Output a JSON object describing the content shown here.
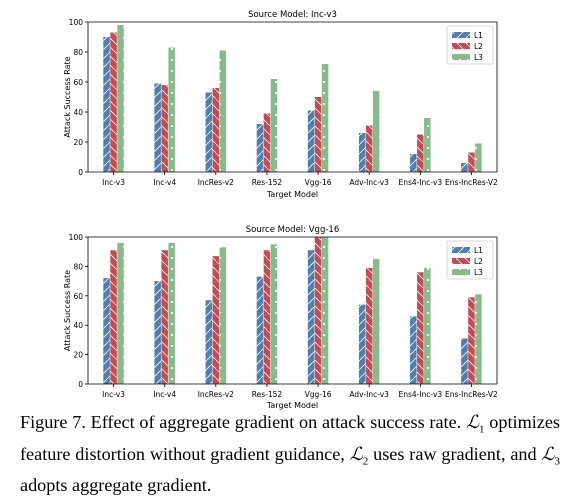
{
  "colors": {
    "L1": "#4e7fb4",
    "L2": "#c8494f",
    "L3": "#86bc8a"
  },
  "chart_data": [
    {
      "type": "bar",
      "title": "Source Model: Inc-v3",
      "xlabel": "Target Model",
      "ylabel": "Attack Success Rate",
      "ylim": [
        0,
        100
      ],
      "yticks": [
        "0",
        "20",
        "40",
        "60",
        "80",
        "100"
      ],
      "grid": false,
      "legend": "top-right",
      "categories": [
        "Inc-v3",
        "Inc-v4",
        "IncRes-v2",
        "Res-152",
        "Vgg-16",
        "Adv-Inc-v3",
        "Ens4-Inc-v3",
        "Ens-IncRes-V2"
      ],
      "series": [
        {
          "name": "L1",
          "values": [
            90,
            59,
            53,
            32,
            41,
            26,
            12,
            6
          ]
        },
        {
          "name": "L2",
          "values": [
            93,
            58,
            56,
            39,
            50,
            31,
            25,
            13
          ]
        },
        {
          "name": "L3",
          "values": [
            98,
            83,
            81,
            62,
            72,
            54,
            36,
            19
          ]
        }
      ]
    },
    {
      "type": "bar",
      "title": "Source Model: Vgg-16",
      "xlabel": "Target Model",
      "ylabel": "Attack Success Rate",
      "ylim": [
        0,
        100
      ],
      "yticks": [
        "0",
        "20",
        "40",
        "60",
        "80",
        "100"
      ],
      "grid": false,
      "legend": "top-right",
      "categories": [
        "Inc-v3",
        "Inc-v4",
        "IncRes-v2",
        "Res-152",
        "Vgg-16",
        "Adv-Inc-v3",
        "Ens4-Inc-v3",
        "Ens-IncRes-V2"
      ],
      "series": [
        {
          "name": "L1",
          "values": [
            72,
            70,
            57,
            73,
            91,
            54,
            46,
            31
          ]
        },
        {
          "name": "L2",
          "values": [
            91,
            91,
            87,
            91,
            100,
            79,
            76,
            59
          ]
        },
        {
          "name": "L3",
          "values": [
            96,
            96,
            93,
            95,
            100,
            85,
            79,
            61
          ]
        }
      ]
    }
  ],
  "caption": {
    "prefix": "Figure 7. Effect of aggregate gradient on attack success rate.",
    "sym": "ℒ",
    "n1": "1",
    "seg1": "optimizes feature distortion without gradient guidance,",
    "n2": "2",
    "seg2": "uses raw gradient, and",
    "n3": "3",
    "seg3": "adopts aggregate gradient."
  }
}
